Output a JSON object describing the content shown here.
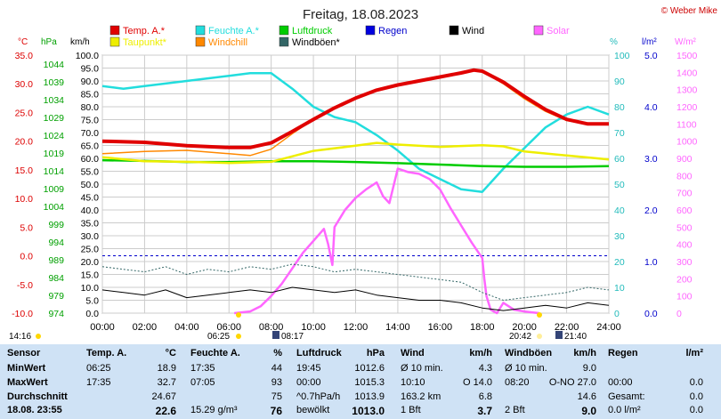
{
  "title": "Freitag, 18.08.2023",
  "copyright": "© Weber Mike",
  "legend": [
    {
      "label": "Temp. A.*",
      "color": "#e00000"
    },
    {
      "label": "Feuchte A.*",
      "color": "#22dddd"
    },
    {
      "label": "Luftdruck",
      "color": "#00cc00"
    },
    {
      "label": "Regen",
      "color": "#0000e0"
    },
    {
      "label": "Wind",
      "color": "#000000"
    },
    {
      "label": "Solar",
      "color": "#ff66ff"
    },
    {
      "label": "Taupunkt*",
      "color": "#eeee00"
    },
    {
      "label": "Windchill",
      "color": "#ff8800"
    },
    {
      "label": "Windböen*",
      "color": "#336666"
    }
  ],
  "axis_units": {
    "temp": "°C",
    "pressure": "hPa",
    "wind": "km/h",
    "humidity": "%",
    "rain": "l/m²",
    "solar": "W/m²"
  },
  "time_markers": {
    "left": "14:16",
    "sunrise": "06:25",
    "moonrise": "08:17",
    "sunset": "20:42",
    "moonset": "21:40"
  },
  "chart_data": {
    "type": "line",
    "title": "Freitag, 18.08.2023",
    "x_ticks": [
      "00:00",
      "02:00",
      "04:00",
      "06:00",
      "08:00",
      "10:00",
      "12:00",
      "14:00",
      "16:00",
      "18:00",
      "20:00",
      "22:00",
      "24:00"
    ],
    "y_ticks": {
      "temp": [
        "35.0",
        "30.0",
        "25.0",
        "20.0",
        "15.0",
        "10.0",
        "5.0",
        "0.0",
        "-5.0",
        "-10.0"
      ],
      "pressure": [
        "1044",
        "1039",
        "1034",
        "1029",
        "1024",
        "1019",
        "1014",
        "1009",
        "1004",
        "999",
        "994",
        "989",
        "984",
        "979",
        "974"
      ],
      "wind": [
        "100.0",
        "95.0",
        "90.0",
        "85.0",
        "80.0",
        "75.0",
        "70.0",
        "65.0",
        "60.0",
        "55.0",
        "50.0",
        "45.0",
        "40.0",
        "35.0",
        "30.0",
        "25.0",
        "20.0",
        "15.0",
        "10.0",
        "5.0",
        "0.0"
      ],
      "humidity": [
        "100",
        "90",
        "80",
        "70",
        "60",
        "50",
        "40",
        "30",
        "20",
        "10",
        "0"
      ],
      "rain": [
        "5.0",
        "4.0",
        "3.0",
        "2.0",
        "1.0",
        "0.0"
      ],
      "solar": [
        "1500",
        "1400",
        "1300",
        "1200",
        "1100",
        "1000",
        "900",
        "800",
        "700",
        "600",
        "500",
        "400",
        "300",
        "200",
        "100",
        "0"
      ]
    },
    "xlim": [
      0,
      24
    ],
    "grid": true,
    "series": [
      {
        "name": "Temp. A.*",
        "axis": "temp",
        "color": "#e00000",
        "x": [
          0,
          2,
          4,
          6,
          7,
          8,
          9,
          10,
          11,
          12,
          13,
          14,
          15,
          16,
          17,
          17.6,
          18,
          19,
          20,
          21,
          22,
          23,
          24
        ],
        "y": [
          20.0,
          19.8,
          19.2,
          18.9,
          18.9,
          19.7,
          21.7,
          23.8,
          25.8,
          27.5,
          28.9,
          29.8,
          30.5,
          31.2,
          31.9,
          32.4,
          32.2,
          30.3,
          27.8,
          25.5,
          23.8,
          23.0,
          23.0
        ]
      },
      {
        "name": "Feuchte A.*",
        "axis": "humidity",
        "color": "#22dddd",
        "x": [
          0,
          1,
          2,
          4,
          6,
          7,
          8,
          9,
          10,
          11,
          12,
          13,
          14,
          15,
          16,
          17,
          18,
          19,
          20,
          21,
          22,
          23,
          24
        ],
        "y": [
          88,
          87,
          88,
          90,
          92,
          93,
          93,
          87,
          80,
          76,
          74,
          69,
          63,
          56,
          52,
          48,
          47,
          56,
          64,
          72,
          77,
          80,
          77
        ]
      },
      {
        "name": "Luftdruck",
        "axis": "pressure",
        "color": "#00cc00",
        "x": [
          0,
          2,
          4,
          6,
          8,
          10,
          12,
          14,
          16,
          18,
          20,
          22,
          24
        ],
        "y": [
          1015.5,
          1015.3,
          1015.0,
          1015.0,
          1015.2,
          1015.2,
          1015.0,
          1014.7,
          1014.3,
          1013.9,
          1013.7,
          1013.7,
          1013.9
        ]
      },
      {
        "name": "Taupunkt*",
        "axis": "temp",
        "color": "#eeee00",
        "x": [
          0,
          2,
          4,
          6,
          8,
          10,
          12,
          13,
          14,
          16,
          18,
          19,
          20,
          22,
          24
        ],
        "y": [
          17.2,
          16.5,
          16.4,
          16.2,
          16.4,
          18.3,
          19.2,
          19.7,
          19.4,
          19.0,
          19.3,
          19.1,
          18.2,
          17.5,
          16.8
        ]
      },
      {
        "name": "Windchill",
        "axis": "temp",
        "color": "#ff8800",
        "x": [
          0,
          2,
          4,
          6,
          7,
          8,
          9,
          10,
          11,
          12,
          13,
          14,
          15,
          16,
          17,
          17.6,
          18,
          19,
          20,
          21,
          22,
          23,
          24
        ],
        "y": [
          17.8,
          18.2,
          18.4,
          17.8,
          17.5,
          18.6,
          21.3,
          23.8,
          25.8,
          27.5,
          28.9,
          29.8,
          30.5,
          31.2,
          31.9,
          32.4,
          32.2,
          30.0,
          27.4,
          25.2,
          23.6,
          23.0,
          23.0
        ]
      },
      {
        "name": "Solar",
        "axis": "solar",
        "color": "#ff66ff",
        "x": [
          6.25,
          7,
          7.5,
          8,
          8.5,
          9,
          9.5,
          10,
          10.5,
          10.7,
          10.9,
          11,
          11.5,
          12,
          12.5,
          13,
          13.3,
          13.6,
          14,
          14.5,
          15,
          15.5,
          16,
          16.5,
          17,
          17.5,
          18,
          18.1,
          18.2,
          18.4,
          18.7,
          19,
          19.5,
          20,
          20.3,
          20.7
        ],
        "y": [
          0,
          10,
          40,
          100,
          170,
          260,
          350,
          420,
          490,
          400,
          280,
          500,
          600,
          670,
          720,
          760,
          680,
          640,
          840,
          820,
          810,
          780,
          720,
          610,
          510,
          410,
          320,
          200,
          100,
          20,
          0,
          60,
          20,
          10,
          5,
          0
        ]
      },
      {
        "name": "Wind",
        "axis": "wind",
        "color": "#000000",
        "x": [
          0,
          1,
          2,
          3,
          4,
          5,
          6,
          7,
          8,
          9,
          10,
          11,
          12,
          13,
          14,
          15,
          16,
          17,
          18,
          19,
          20,
          21,
          22,
          23,
          24
        ],
        "y": [
          9,
          8,
          7,
          9,
          6,
          7,
          8,
          9,
          8,
          10,
          9,
          8,
          9,
          7,
          6,
          5,
          5,
          4,
          2,
          1,
          2,
          3,
          2,
          4,
          3
        ]
      },
      {
        "name": "Windböen*",
        "axis": "wind",
        "color": "#336666",
        "x": [
          0,
          1,
          2,
          3,
          4,
          5,
          6,
          7,
          8,
          9,
          10,
          11,
          12,
          13,
          14,
          15,
          16,
          17,
          18,
          19,
          20,
          21,
          22,
          23,
          24
        ],
        "y": [
          18,
          17,
          16,
          18,
          15,
          17,
          16,
          18,
          17,
          19,
          18,
          16,
          17,
          16,
          15,
          14,
          13,
          12,
          8,
          5,
          6,
          7,
          8,
          10,
          9
        ]
      }
    ]
  },
  "table": {
    "rows": [
      [
        "Sensor",
        "Temp. A.",
        "°C",
        "Feuchte A.",
        "%",
        "Luftdruck",
        "hPa",
        "Wind",
        "km/h",
        "Windböen",
        "km/h",
        "Regen",
        "l/m²"
      ],
      [
        "MinWert",
        "06:25",
        "18.9",
        "17:35",
        "44",
        "19:45",
        "1012.6",
        "Ø 10 min.",
        "4.3",
        "Ø 10 min.",
        "9.0",
        "",
        ""
      ],
      [
        "MaxWert",
        "17:35",
        "32.7",
        "07:05",
        "93",
        "00:00",
        "1015.3",
        "10:10",
        "O 14.0",
        "08:20",
        "O-NO 27.0",
        "00:00",
        "0.0"
      ],
      [
        "Durchschnitt",
        "",
        "24.67",
        "",
        "75",
        "^0.7hPa/h",
        "1013.9",
        "163.2 km",
        "6.8",
        "",
        "14.6",
        "Gesamt:",
        "0.0"
      ],
      [
        "18.08.  23:55",
        "",
        "22.6",
        "15.29 g/m³",
        "76",
        "bewölkt",
        "1013.0",
        "1 Bft",
        "3.7",
        "2 Bft",
        "9.0",
        "0.0 l/m²",
        "0.0"
      ]
    ]
  }
}
